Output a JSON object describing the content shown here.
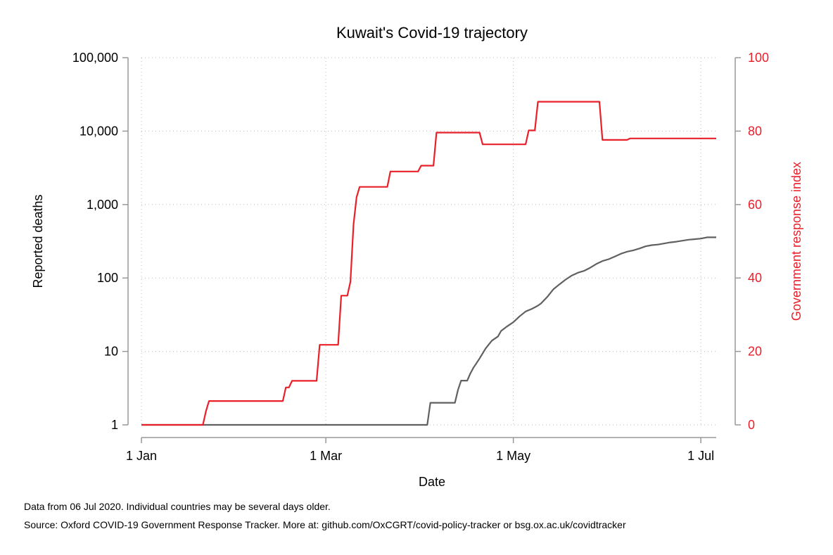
{
  "chart_data": {
    "type": "line",
    "title": "Kuwait's Covid-19 trajectory",
    "xlabel": "Date",
    "ylabel_left": "Reported deaths",
    "ylabel_right": "Government response index",
    "x_ticks": [
      {
        "date": "2020-01-01",
        "label": "1 Jan"
      },
      {
        "date": "2020-03-01",
        "label": "1 Mar"
      },
      {
        "date": "2020-05-01",
        "label": "1 May"
      },
      {
        "date": "2020-07-01",
        "label": "1 Jul"
      }
    ],
    "xlim": [
      "2020-01-01",
      "2020-07-06"
    ],
    "y_left": {
      "scale": "log",
      "range": [
        1,
        100000
      ],
      "ticks": [
        {
          "value": 1,
          "label": "1"
        },
        {
          "value": 10,
          "label": "10"
        },
        {
          "value": 100,
          "label": "100"
        },
        {
          "value": 1000,
          "label": "1,000"
        },
        {
          "value": 10000,
          "label": "10,000"
        },
        {
          "value": 100000,
          "label": "100,000"
        }
      ]
    },
    "y_right": {
      "scale": "linear",
      "range": [
        0,
        100
      ],
      "ticks": [
        {
          "value": 0,
          "label": "0"
        },
        {
          "value": 20,
          "label": "20"
        },
        {
          "value": 40,
          "label": "40"
        },
        {
          "value": 60,
          "label": "60"
        },
        {
          "value": 80,
          "label": "80"
        },
        {
          "value": 100,
          "label": "100"
        }
      ]
    },
    "grid": true,
    "colors": {
      "deaths": "#606060",
      "index": "#e8202a",
      "axis": "#999999",
      "grid": "#bbbbbb"
    },
    "series": [
      {
        "axis": "left",
        "color": "#606060",
        "points": [
          [
            "2020-01-01",
            1
          ],
          [
            "2020-04-03",
            1
          ],
          [
            "2020-04-04",
            2
          ],
          [
            "2020-04-12",
            2
          ],
          [
            "2020-04-13",
            3
          ],
          [
            "2020-04-14",
            4
          ],
          [
            "2020-04-16",
            4
          ],
          [
            "2020-04-17",
            5
          ],
          [
            "2020-04-18",
            6
          ],
          [
            "2020-04-20",
            8
          ],
          [
            "2020-04-22",
            11
          ],
          [
            "2020-04-24",
            14
          ],
          [
            "2020-04-26",
            16
          ],
          [
            "2020-04-27",
            19
          ],
          [
            "2020-04-29",
            22
          ],
          [
            "2020-05-01",
            25
          ],
          [
            "2020-05-03",
            30
          ],
          [
            "2020-05-05",
            35
          ],
          [
            "2020-05-07",
            38
          ],
          [
            "2020-05-09",
            42
          ],
          [
            "2020-05-10",
            45
          ],
          [
            "2020-05-12",
            55
          ],
          [
            "2020-05-14",
            70
          ],
          [
            "2020-05-16",
            82
          ],
          [
            "2020-05-18",
            95
          ],
          [
            "2020-05-20",
            108
          ],
          [
            "2020-05-22",
            118
          ],
          [
            "2020-05-24",
            125
          ],
          [
            "2020-05-26",
            138
          ],
          [
            "2020-05-28",
            155
          ],
          [
            "2020-05-30",
            170
          ],
          [
            "2020-06-01",
            180
          ],
          [
            "2020-06-03",
            196
          ],
          [
            "2020-06-05",
            214
          ],
          [
            "2020-06-07",
            228
          ],
          [
            "2020-06-09",
            238
          ],
          [
            "2020-06-11",
            252
          ],
          [
            "2020-06-13",
            270
          ],
          [
            "2020-06-15",
            280
          ],
          [
            "2020-06-17",
            285
          ],
          [
            "2020-06-19",
            295
          ],
          [
            "2020-06-21",
            305
          ],
          [
            "2020-06-23",
            312
          ],
          [
            "2020-06-25",
            322
          ],
          [
            "2020-06-27",
            332
          ],
          [
            "2020-06-29",
            338
          ],
          [
            "2020-07-01",
            344
          ],
          [
            "2020-07-03",
            358
          ],
          [
            "2020-07-06",
            358
          ]
        ]
      },
      {
        "axis": "right",
        "color": "#e8202a",
        "points": [
          [
            "2020-01-01",
            0
          ],
          [
            "2020-01-21",
            0
          ],
          [
            "2020-01-22",
            3.7
          ],
          [
            "2020-01-23",
            6.5
          ],
          [
            "2020-02-16",
            6.5
          ],
          [
            "2020-02-17",
            10.2
          ],
          [
            "2020-02-18",
            10.2
          ],
          [
            "2020-02-19",
            12.0
          ],
          [
            "2020-02-27",
            12.0
          ],
          [
            "2020-02-28",
            21.8
          ],
          [
            "2020-03-05",
            21.8
          ],
          [
            "2020-03-06",
            35.2
          ],
          [
            "2020-03-08",
            35.2
          ],
          [
            "2020-03-09",
            39.0
          ],
          [
            "2020-03-10",
            54.6
          ],
          [
            "2020-03-11",
            62.0
          ],
          [
            "2020-03-12",
            64.8
          ],
          [
            "2020-03-21",
            64.8
          ],
          [
            "2020-03-22",
            69.0
          ],
          [
            "2020-03-31",
            69.0
          ],
          [
            "2020-04-01",
            70.6
          ],
          [
            "2020-04-05",
            70.6
          ],
          [
            "2020-04-06",
            79.6
          ],
          [
            "2020-04-20",
            79.6
          ],
          [
            "2020-04-21",
            76.4
          ],
          [
            "2020-05-05",
            76.4
          ],
          [
            "2020-05-06",
            80.2
          ],
          [
            "2020-05-08",
            80.2
          ],
          [
            "2020-05-09",
            88.0
          ],
          [
            "2020-05-29",
            88.0
          ],
          [
            "2020-05-30",
            77.6
          ],
          [
            "2020-06-07",
            77.6
          ],
          [
            "2020-06-08",
            78.0
          ],
          [
            "2020-07-06",
            78.0
          ]
        ]
      }
    ]
  },
  "notes": {
    "line1": "Data from 06 Jul 2020. Individual countries may be several days older.",
    "line2": "Source: Oxford COVID-19 Government Response Tracker. More at: github.com/OxCGRT/covid-policy-tracker or bsg.ox.ac.uk/covidtracker"
  }
}
